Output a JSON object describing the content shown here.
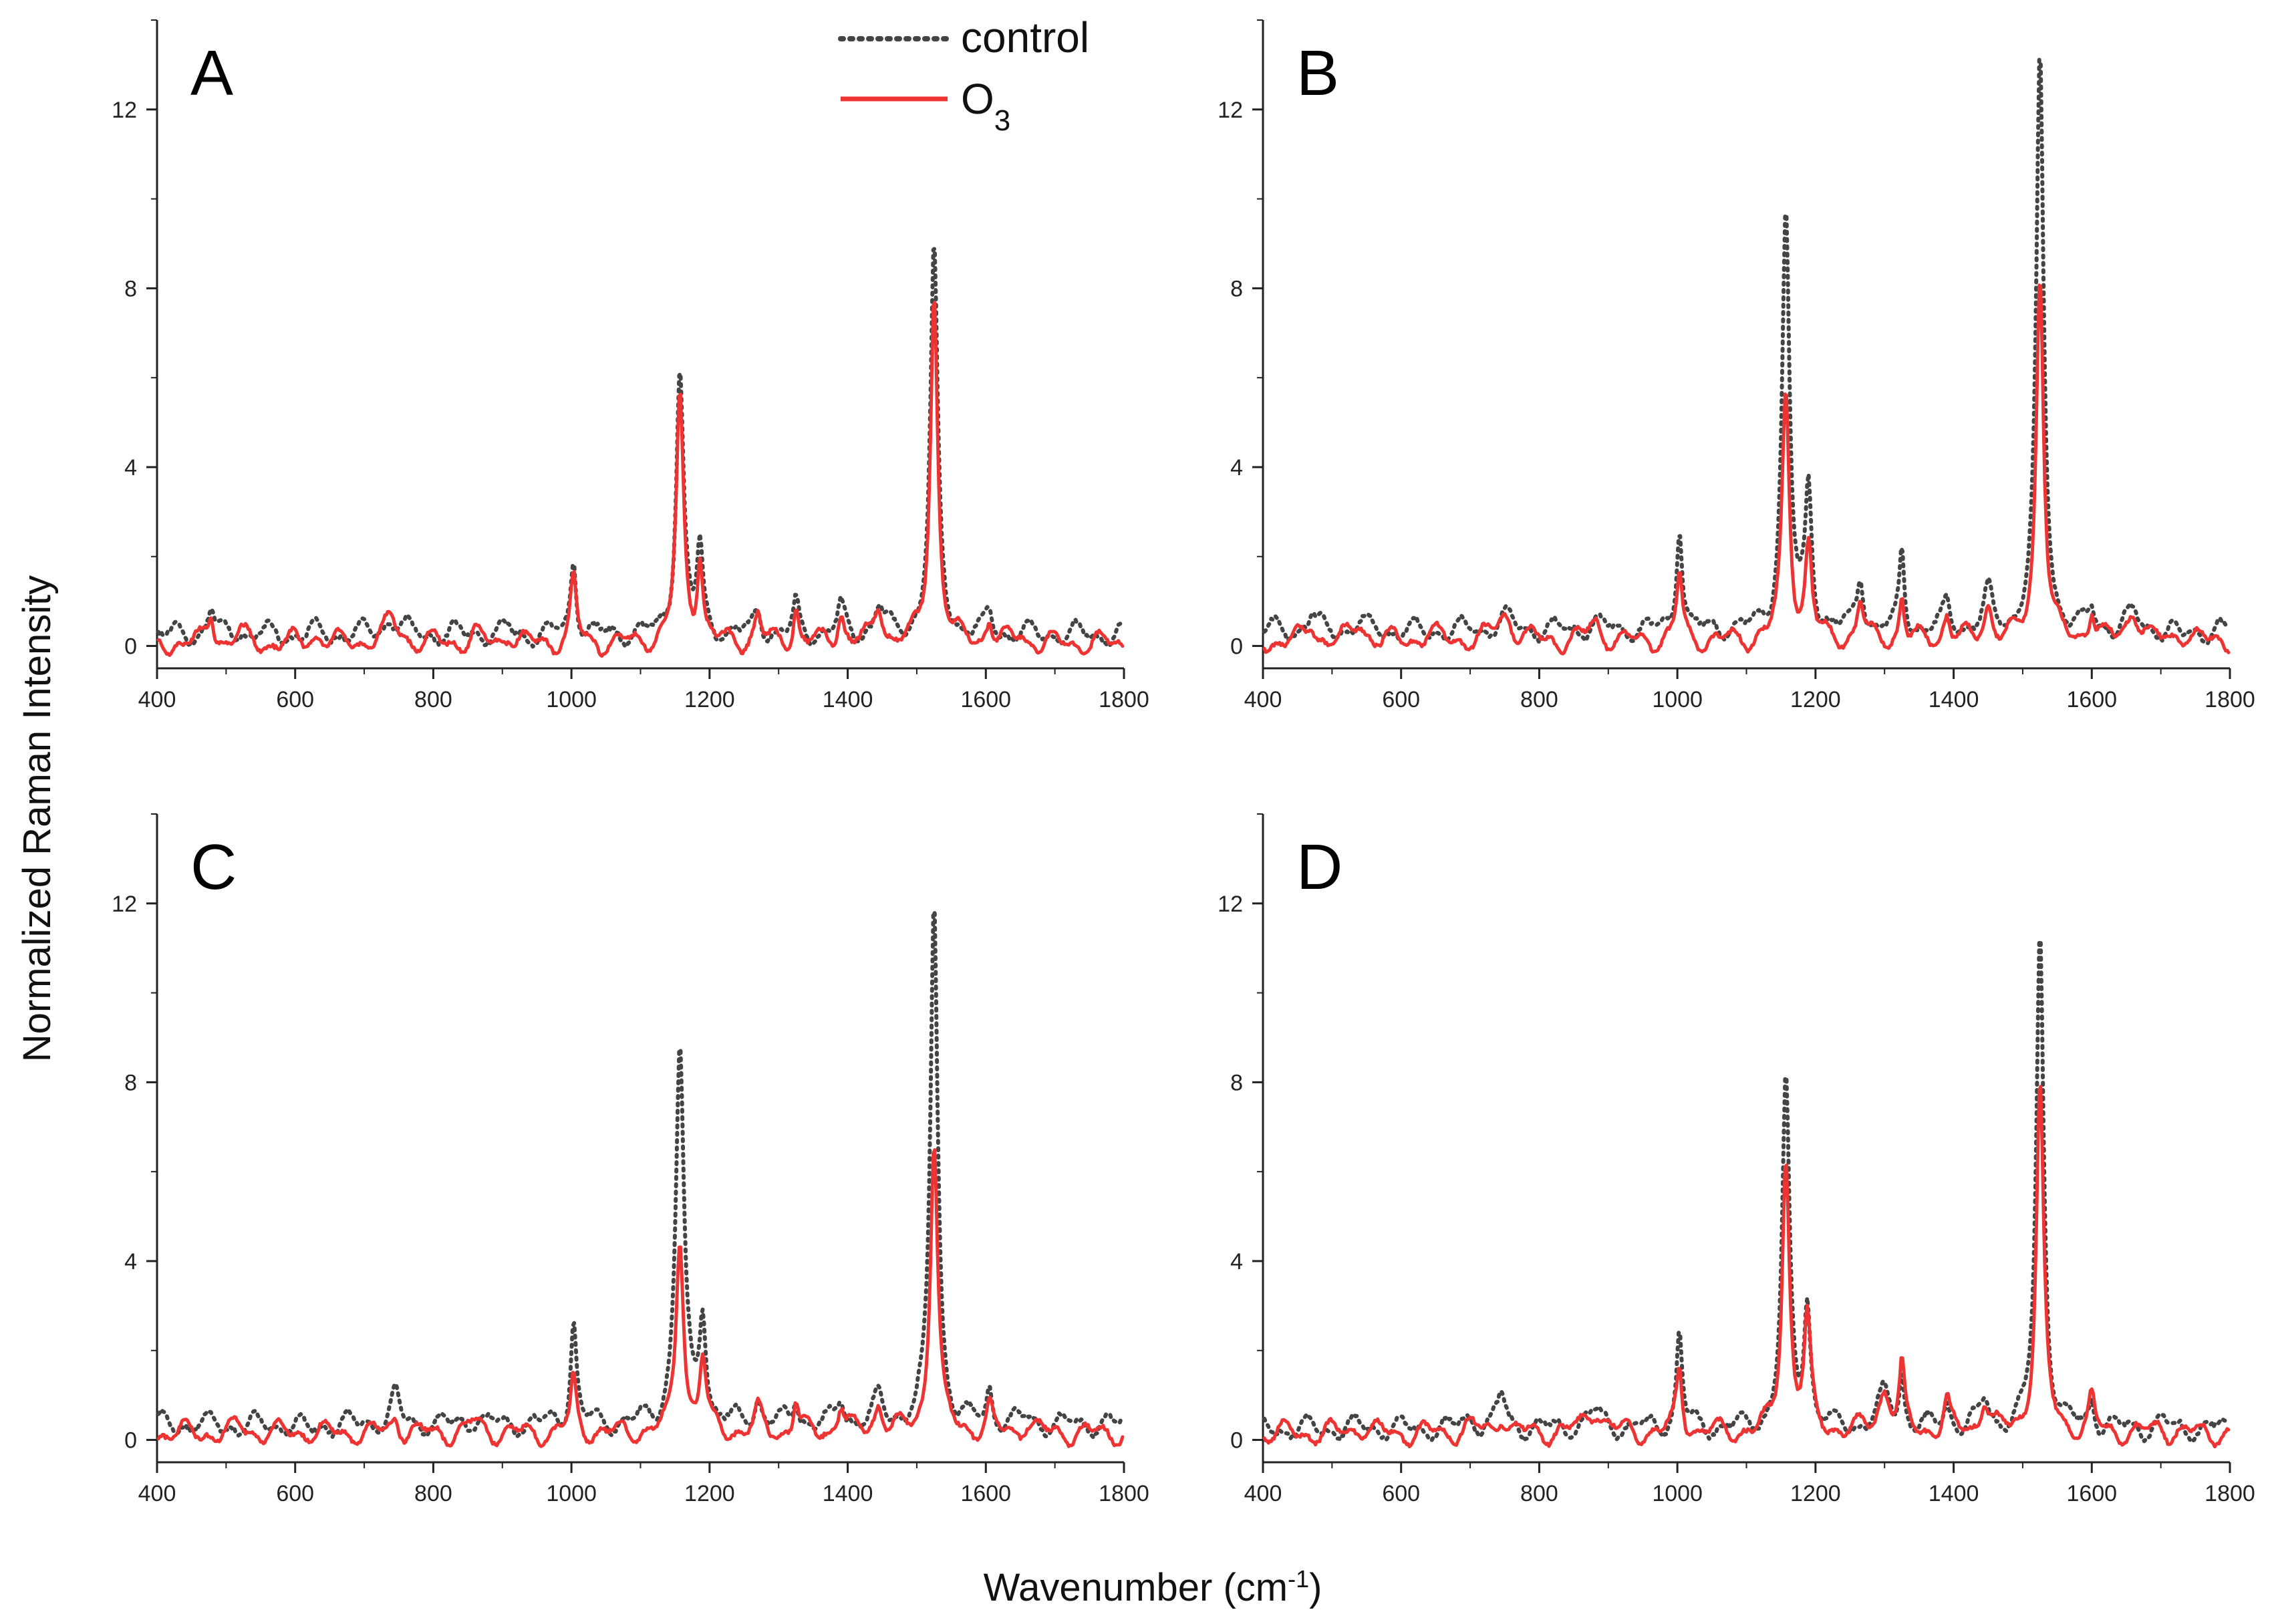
{
  "figure": {
    "ylabel": "Normalized Raman Intensity",
    "xlabel_main": "Wavenumber (cm",
    "xlabel_sup": "-1",
    "xlabel_end": ")"
  },
  "legend": {
    "control": "control",
    "o3_base": "O",
    "o3_sub": "3",
    "control_color": "#444444",
    "o3_color": "#ee3333"
  },
  "chart_data": [
    {
      "type": "line",
      "panel": "A",
      "xlim": [
        400,
        1800
      ],
      "ylim": [
        -0.5,
        14
      ],
      "xticks": [
        "400",
        "600",
        "800",
        "1000",
        "1200",
        "1400",
        "1600",
        "1800"
      ],
      "yticks": [
        "0",
        "4",
        "8",
        "12"
      ],
      "series": [
        {
          "name": "control",
          "baseline": 0.25,
          "peaks": [
            [
              478,
              0.85,
              8
            ],
            [
              520,
              0.35,
              10
            ],
            [
              630,
              0.3,
              15
            ],
            [
              740,
              0.6,
              20
            ],
            [
              860,
              0.3,
              12
            ],
            [
              910,
              0.4,
              8
            ],
            [
              1003,
              2.0,
              7
            ],
            [
              1157,
              6.2,
              9
            ],
            [
              1186,
              2.1,
              7
            ],
            [
              1270,
              0.8,
              8
            ],
            [
              1325,
              0.9,
              6
            ],
            [
              1390,
              0.8,
              8
            ],
            [
              1445,
              0.9,
              10
            ],
            [
              1525,
              8.8,
              9
            ],
            [
              1605,
              0.7,
              7
            ],
            [
              1650,
              0.3,
              12
            ]
          ]
        },
        {
          "name": "O3",
          "baseline": 0.05,
          "peaks": [
            [
              478,
              0.75,
              8
            ],
            [
              520,
              0.3,
              10
            ],
            [
              630,
              0.25,
              15
            ],
            [
              740,
              0.55,
              20
            ],
            [
              860,
              0.25,
              12
            ],
            [
              910,
              0.35,
              8
            ],
            [
              1003,
              1.5,
              7
            ],
            [
              1157,
              5.5,
              9
            ],
            [
              1186,
              1.9,
              7
            ],
            [
              1270,
              0.7,
              8
            ],
            [
              1325,
              0.9,
              6
            ],
            [
              1390,
              0.75,
              8
            ],
            [
              1445,
              0.9,
              10
            ],
            [
              1525,
              7.9,
              9
            ],
            [
              1605,
              0.6,
              7
            ],
            [
              1650,
              0.25,
              12
            ]
          ]
        }
      ]
    },
    {
      "type": "line",
      "panel": "B",
      "xlim": [
        400,
        1800
      ],
      "ylim": [
        -0.5,
        14
      ],
      "xticks": [
        "400",
        "600",
        "800",
        "1000",
        "1200",
        "1400",
        "1600",
        "1800"
      ],
      "yticks": [
        "0",
        "4",
        "8",
        "12"
      ],
      "series": [
        {
          "name": "control",
          "baseline": 0.35,
          "peaks": [
            [
              470,
              0.7,
              10
            ],
            [
              540,
              0.5,
              15
            ],
            [
              640,
              0.3,
              15
            ],
            [
              750,
              0.6,
              20
            ],
            [
              880,
              0.5,
              15
            ],
            [
              1003,
              2.8,
              7
            ],
            [
              1157,
              9.7,
              9
            ],
            [
              1190,
              3.4,
              8
            ],
            [
              1265,
              1.6,
              8
            ],
            [
              1325,
              2.1,
              6
            ],
            [
              1390,
              0.9,
              8
            ],
            [
              1450,
              1.1,
              10
            ],
            [
              1525,
              13.2,
              9
            ],
            [
              1600,
              0.8,
              7
            ],
            [
              1660,
              0.7,
              15
            ],
            [
              1730,
              0.2,
              15
            ]
          ]
        },
        {
          "name": "O3",
          "baseline": 0.1,
          "peaks": [
            [
              470,
              0.5,
              10
            ],
            [
              540,
              0.5,
              15
            ],
            [
              640,
              0.3,
              15
            ],
            [
              750,
              0.7,
              20
            ],
            [
              880,
              0.5,
              15
            ],
            [
              1003,
              1.6,
              7
            ],
            [
              1157,
              5.6,
              9
            ],
            [
              1190,
              2.2,
              8
            ],
            [
              1265,
              1.0,
              8
            ],
            [
              1325,
              1.1,
              6
            ],
            [
              1390,
              0.7,
              8
            ],
            [
              1450,
              0.9,
              10
            ],
            [
              1525,
              8.4,
              9
            ],
            [
              1600,
              0.8,
              7
            ],
            [
              1660,
              0.8,
              15
            ],
            [
              1730,
              0.3,
              15
            ]
          ]
        }
      ]
    },
    {
      "type": "line",
      "panel": "C",
      "xlim": [
        400,
        1800
      ],
      "ylim": [
        -0.5,
        14
      ],
      "xticks": [
        "400",
        "600",
        "800",
        "1000",
        "1200",
        "1400",
        "1600",
        "1800"
      ],
      "yticks": [
        "0",
        "4",
        "8",
        "12"
      ],
      "series": [
        {
          "name": "control",
          "baseline": 0.35,
          "peaks": [
            [
              520,
              0.3,
              15
            ],
            [
              620,
              0.2,
              15
            ],
            [
              745,
              1.0,
              10
            ],
            [
              860,
              0.5,
              15
            ],
            [
              1003,
              2.7,
              7
            ],
            [
              1157,
              8.8,
              10
            ],
            [
              1190,
              2.8,
              8
            ],
            [
              1270,
              0.9,
              8
            ],
            [
              1325,
              1.0,
              6
            ],
            [
              1390,
              0.9,
              8
            ],
            [
              1445,
              0.9,
              10
            ],
            [
              1525,
              12.1,
              9
            ],
            [
              1605,
              1.1,
              7
            ],
            [
              1660,
              0.5,
              12
            ]
          ]
        },
        {
          "name": "O3",
          "baseline": 0.15,
          "peaks": [
            [
              520,
              0.3,
              15
            ],
            [
              620,
              0.2,
              15
            ],
            [
              745,
              0.5,
              10
            ],
            [
              860,
              0.4,
              15
            ],
            [
              1003,
              1.3,
              7
            ],
            [
              1157,
              4.6,
              9
            ],
            [
              1190,
              1.8,
              8
            ],
            [
              1270,
              0.6,
              8
            ],
            [
              1325,
              0.9,
              6
            ],
            [
              1390,
              0.8,
              8
            ],
            [
              1445,
              0.8,
              10
            ],
            [
              1525,
              6.8,
              9
            ],
            [
              1605,
              0.7,
              7
            ],
            [
              1660,
              0.4,
              12
            ]
          ]
        }
      ]
    },
    {
      "type": "line",
      "panel": "D",
      "xlim": [
        400,
        1800
      ],
      "ylim": [
        -0.5,
        14
      ],
      "xticks": [
        "400",
        "600",
        "800",
        "1000",
        "1200",
        "1400",
        "1600",
        "1800"
      ],
      "yticks": [
        "0",
        "4",
        "8",
        "12"
      ],
      "series": [
        {
          "name": "control",
          "baseline": 0.25,
          "peaks": [
            [
              540,
              0.3,
              15
            ],
            [
              700,
              0.5,
              15
            ],
            [
              745,
              1.0,
              10
            ],
            [
              880,
              0.6,
              20
            ],
            [
              1003,
              2.4,
              7
            ],
            [
              1157,
              7.9,
              9
            ],
            [
              1188,
              3.0,
              8
            ],
            [
              1300,
              1.0,
              15
            ],
            [
              1325,
              1.4,
              6
            ],
            [
              1390,
              0.8,
              8
            ],
            [
              1445,
              0.9,
              10
            ],
            [
              1525,
              11.4,
              9
            ],
            [
              1600,
              0.9,
              7
            ],
            [
              1700,
              0.4,
              12
            ]
          ]
        },
        {
          "name": "O3",
          "baseline": 0.15,
          "peaks": [
            [
              540,
              0.3,
              15
            ],
            [
              700,
              0.3,
              15
            ],
            [
              745,
              0.6,
              10
            ],
            [
              880,
              0.7,
              20
            ],
            [
              1003,
              1.6,
              7
            ],
            [
              1157,
              6.3,
              9
            ],
            [
              1188,
              2.6,
              8
            ],
            [
              1300,
              1.1,
              15
            ],
            [
              1325,
              1.5,
              6
            ],
            [
              1390,
              0.8,
              8
            ],
            [
              1445,
              0.9,
              10
            ],
            [
              1525,
              7.9,
              9
            ],
            [
              1600,
              0.9,
              7
            ],
            [
              1700,
              0.3,
              12
            ]
          ]
        }
      ]
    }
  ]
}
